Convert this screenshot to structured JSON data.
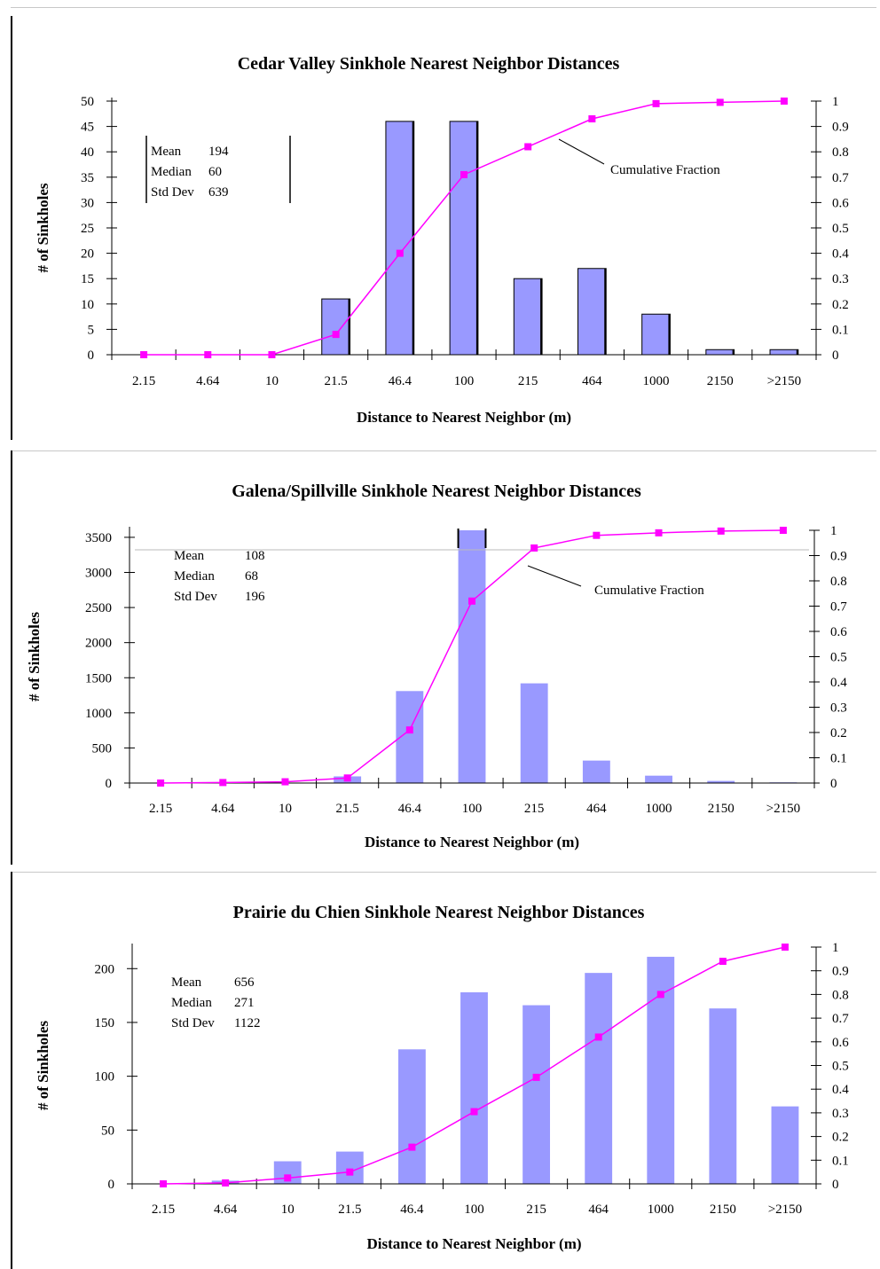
{
  "colors": {
    "bar": "#9999ff",
    "line": "#ff00ff",
    "axis": "#000000"
  },
  "chart_data": [
    {
      "type": "bar",
      "title": "Cedar Valley Sinkhole Nearest Neighbor Distances",
      "xlabel": "Distance to Nearest Neighbor (m)",
      "ylabel": "# of Sinkholes",
      "categories": [
        "2.15",
        "4.64",
        "10",
        "21.5",
        "46.4",
        "100",
        "215",
        "464",
        "1000",
        "2150",
        ">2150"
      ],
      "series": [
        {
          "type": "bar",
          "axis": "left",
          "values": [
            0,
            0,
            0,
            11,
            46,
            46,
            15,
            17,
            8,
            1,
            1
          ]
        },
        {
          "name": "Cumulative Fraction",
          "type": "line",
          "axis": "right",
          "values": [
            0,
            0,
            0,
            0.08,
            0.4,
            0.71,
            0.82,
            0.93,
            0.99,
            0.995,
            1.0
          ]
        }
      ],
      "ylim": [
        0,
        50
      ],
      "yticks": [
        0,
        5,
        10,
        15,
        20,
        25,
        30,
        35,
        40,
        45,
        50
      ],
      "y2lim": [
        0,
        1
      ],
      "y2ticks": [
        0,
        0.1,
        0.2,
        0.3,
        0.4,
        0.5,
        0.6,
        0.7,
        0.8,
        0.9,
        1
      ],
      "bar_outline": true,
      "legend": "none",
      "grid": false,
      "annotation": "Cumulative Fraction",
      "stats": [
        {
          "label": "Mean",
          "value": "194"
        },
        {
          "label": "Median",
          "value": "60"
        },
        {
          "label": "Std Dev",
          "value": "639"
        }
      ]
    },
    {
      "type": "bar",
      "title": "Galena/Spillville Sinkhole Nearest Neighbor Distances",
      "xlabel": "Distance to Nearest Neighbor (m)",
      "ylabel": "# of Sinkholes",
      "categories": [
        "2.15",
        "4.64",
        "10",
        "21.5",
        "46.4",
        "100",
        "215",
        "464",
        "1000",
        "2150",
        ">2150"
      ],
      "series": [
        {
          "type": "bar",
          "axis": "left",
          "values": [
            0,
            2,
            5,
            95,
            1310,
            3600,
            1420,
            320,
            105,
            30,
            10
          ]
        },
        {
          "name": "Cumulative Fraction",
          "type": "line",
          "axis": "right",
          "values": [
            0,
            0.002,
            0.005,
            0.02,
            0.21,
            0.72,
            0.93,
            0.98,
            0.99,
            0.997,
            1.0
          ]
        }
      ],
      "ylim": [
        0,
        3600
      ],
      "yticks": [
        0,
        500,
        1000,
        1500,
        2000,
        2500,
        3000,
        3500
      ],
      "y2lim": [
        0,
        1
      ],
      "y2ticks": [
        0,
        0.1,
        0.2,
        0.3,
        0.4,
        0.5,
        0.6,
        0.7,
        0.8,
        0.9,
        1
      ],
      "bar_outline": false,
      "legend": "none",
      "grid": false,
      "annotation": "Cumulative Fraction",
      "stats": [
        {
          "label": "Mean",
          "value": "108"
        },
        {
          "label": "Median",
          "value": "68"
        },
        {
          "label": "Std Dev",
          "value": "196"
        }
      ]
    },
    {
      "type": "bar",
      "title": "Prairie du Chien Sinkhole Nearest Neighbor Distances",
      "xlabel": "Distance to Nearest Neighbor (m)",
      "ylabel": "# of Sinkholes",
      "categories": [
        "2.15",
        "4.64",
        "10",
        "21.5",
        "46.4",
        "100",
        "215",
        "464",
        "1000",
        "2150",
        ">2150"
      ],
      "series": [
        {
          "type": "bar",
          "axis": "left",
          "values": [
            0,
            3,
            21,
            30,
            125,
            178,
            166,
            196,
            211,
            163,
            72
          ]
        },
        {
          "name": "",
          "type": "line",
          "axis": "right",
          "values": [
            0,
            0.004,
            0.025,
            0.05,
            0.155,
            0.305,
            0.45,
            0.62,
            0.8,
            0.94,
            1.0
          ]
        }
      ],
      "ylim": [
        0,
        220
      ],
      "yticks": [
        0,
        50,
        100,
        150,
        200
      ],
      "y2lim": [
        0,
        1
      ],
      "y2ticks": [
        0,
        0.1,
        0.2,
        0.3,
        0.4,
        0.5,
        0.6,
        0.7,
        0.8,
        0.9,
        1
      ],
      "bar_outline": false,
      "legend": "none",
      "grid": false,
      "annotation": "",
      "stats": [
        {
          "label": "Mean",
          "value": "656"
        },
        {
          "label": "Median",
          "value": "271"
        },
        {
          "label": "Std Dev",
          "value": "1122"
        }
      ]
    }
  ]
}
